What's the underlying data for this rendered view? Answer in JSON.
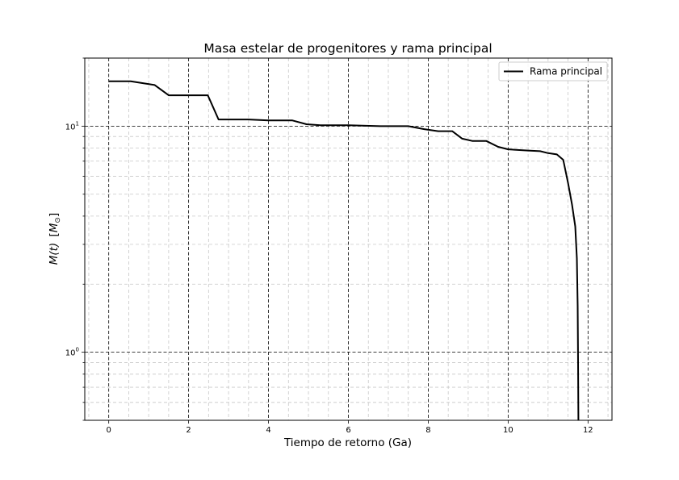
{
  "chart_data": {
    "type": "line",
    "title": "Masa estelar de progenitores y rama principal",
    "xlabel": "Tiempo de retorno (Ga)",
    "ylabel_main": "M(t)",
    "ylabel_unit": "M",
    "ylabel_unit_sub": "⊙",
    "xlim": [
      -0.6,
      12.6
    ],
    "ylim": [
      0.5,
      20
    ],
    "yscale": "log",
    "x_ticks": [
      0,
      2,
      4,
      6,
      8,
      10,
      12
    ],
    "x_tick_labels": [
      "0",
      "2",
      "4",
      "6",
      "8",
      "10",
      "12"
    ],
    "y_ticks": [
      {
        "value": 1,
        "base": "10",
        "exp": "0"
      },
      {
        "value": 10,
        "base": "10",
        "exp": "1"
      }
    ],
    "grid": {
      "major": true,
      "minor": true
    },
    "legend": {
      "placement": "top-right",
      "entries": [
        "Rama principal"
      ]
    },
    "series": [
      {
        "name": "Rama principal",
        "color": "#000000",
        "x": [
          0,
          0.55,
          1.15,
          1.5,
          2.48,
          2.75,
          3.5,
          4.0,
          4.6,
          4.95,
          5.3,
          6.0,
          6.8,
          7.5,
          7.9,
          8.25,
          8.6,
          8.85,
          9.1,
          9.45,
          9.75,
          10.0,
          10.5,
          10.8,
          11.0,
          11.22,
          11.38,
          11.5,
          11.6,
          11.68,
          11.72,
          11.74,
          11.75,
          11.76
        ],
        "y": [
          15.8,
          15.8,
          15.2,
          13.7,
          13.7,
          10.7,
          10.7,
          10.6,
          10.6,
          10.2,
          10.1,
          10.1,
          10.0,
          10.0,
          9.7,
          9.5,
          9.5,
          8.8,
          8.6,
          8.6,
          8.1,
          7.9,
          7.8,
          7.75,
          7.6,
          7.5,
          7.1,
          5.6,
          4.5,
          3.6,
          2.6,
          1.6,
          0.9,
          0.5
        ]
      }
    ]
  }
}
